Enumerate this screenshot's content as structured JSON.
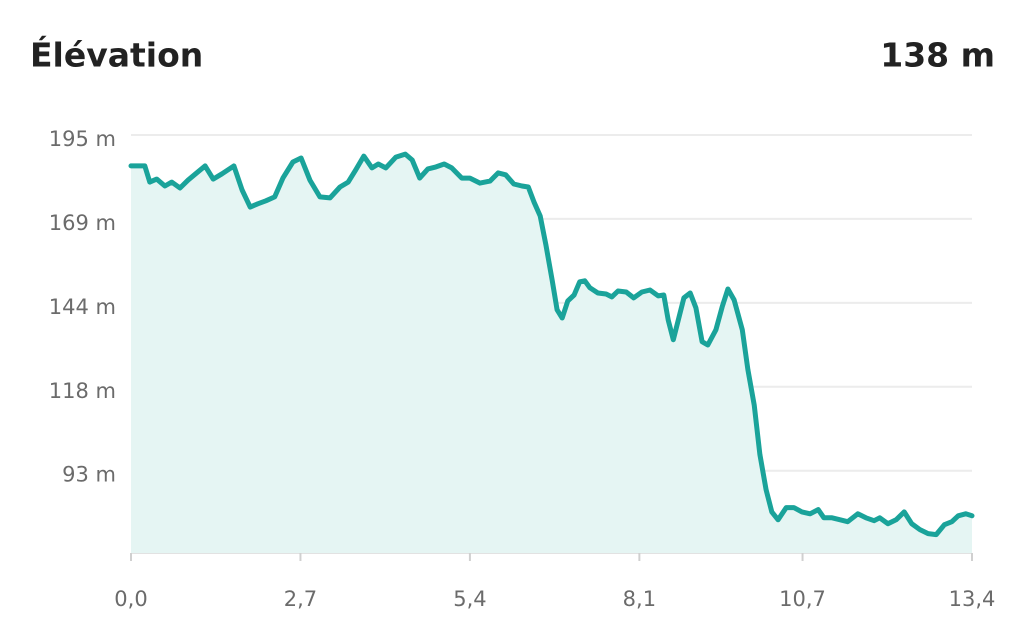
{
  "chart_data": {
    "type": "area",
    "title": "Élévation",
    "current": "138 m",
    "color": "#1aa39a",
    "fill_color": "#e5f5f3",
    "grid": true,
    "x": [
      0,
      0.22,
      0.3,
      0.41,
      0.54,
      0.65,
      0.78,
      0.91,
      1.03,
      1.18,
      1.31,
      1.45,
      1.64,
      1.77,
      1.9,
      2.02,
      2.15,
      2.29,
      2.42,
      2.58,
      2.71,
      2.85,
      3.01,
      3.17,
      3.33,
      3.46,
      3.58,
      3.71,
      3.84,
      3.94,
      4.06,
      4.22,
      4.37,
      4.48,
      4.6,
      4.73,
      4.86,
      4.99,
      5.11,
      5.27,
      5.4,
      5.56,
      5.72,
      5.85,
      5.97,
      6.1,
      6.23,
      6.33,
      6.42,
      6.52,
      6.61,
      6.71,
      6.79,
      6.87,
      6.96,
      7.06,
      7.15,
      7.23,
      7.31,
      7.44,
      7.57,
      7.66,
      7.76,
      7.89,
      8.01,
      8.14,
      8.27,
      8.4,
      8.49,
      8.56,
      8.64,
      8.72,
      8.81,
      8.91,
      9.0,
      9.1,
      9.19,
      9.32,
      9.42,
      9.51,
      9.61,
      9.74,
      9.83,
      9.93,
      10.02,
      10.12,
      10.21,
      10.31,
      10.44,
      10.56,
      10.69,
      10.82,
      10.95,
      11.04,
      11.17,
      11.3,
      11.42,
      11.58,
      11.71,
      11.84,
      11.93,
      12.06,
      12.19,
      12.32,
      12.44,
      12.57,
      12.7,
      12.83,
      12.96,
      13.08,
      13.18,
      13.3,
      13.4
    ],
    "values": [
      185.6,
      185.6,
      180.7,
      181.6,
      179.5,
      180.7,
      178.9,
      181.3,
      183.2,
      185.6,
      181.6,
      183.2,
      185.6,
      178.3,
      173.1,
      174.1,
      175.0,
      176.2,
      181.9,
      186.8,
      188.0,
      181.3,
      176.2,
      175.9,
      179.2,
      180.7,
      184.4,
      188.6,
      185.0,
      186.2,
      185.0,
      188.3,
      189.2,
      187.4,
      181.9,
      184.7,
      185.3,
      186.2,
      185.0,
      181.9,
      181.9,
      180.4,
      181.0,
      183.5,
      182.9,
      180.1,
      179.5,
      179.2,
      174.7,
      170.4,
      161.6,
      151.0,
      141.9,
      139.4,
      144.6,
      146.4,
      150.4,
      150.7,
      148.6,
      147.0,
      146.7,
      145.8,
      147.6,
      147.3,
      145.5,
      147.3,
      147.9,
      146.1,
      146.4,
      138.8,
      132.8,
      138.8,
      145.5,
      147.0,
      142.5,
      132.2,
      131.2,
      135.8,
      142.8,
      148.2,
      144.9,
      135.8,
      123.7,
      113.0,
      97.9,
      87.2,
      80.5,
      78.1,
      81.8,
      81.8,
      80.5,
      79.9,
      81.2,
      78.7,
      78.7,
      78.1,
      77.5,
      79.9,
      78.7,
      77.8,
      78.7,
      76.9,
      78.1,
      80.5,
      76.9,
      75.1,
      73.9,
      73.6,
      76.6,
      77.5,
      79.3,
      79.9,
      79.3
    ],
    "xlim": [
      0,
      13.4
    ],
    "xticks": [
      {
        "value": 0,
        "label": "0,0"
      },
      {
        "value": 2.7,
        "label": "2,7"
      },
      {
        "value": 5.4,
        "label": "5,4"
      },
      {
        "value": 8.1,
        "label": "8,1"
      },
      {
        "value": 10.7,
        "label": "10,7"
      },
      {
        "value": 13.4,
        "label": "13,4"
      }
    ],
    "ylim": [
      68,
      195
    ],
    "yticks": [
      {
        "value": 195,
        "label": "195 m"
      },
      {
        "value": 169.5,
        "label": "169 m"
      },
      {
        "value": 144,
        "label": "144 m"
      },
      {
        "value": 118.5,
        "label": "118 m"
      },
      {
        "value": 93,
        "label": "93 m"
      }
    ]
  }
}
